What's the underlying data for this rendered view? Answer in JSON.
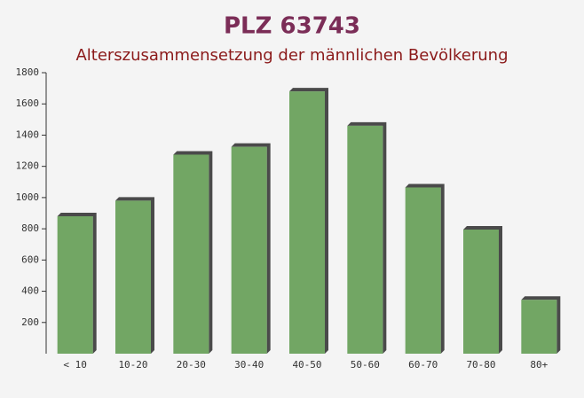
{
  "chart_data": {
    "type": "bar",
    "title": "PLZ 63743",
    "subtitle": "Alterszusammensetzung der männlichen Bevölkerung",
    "categories": [
      "< 10",
      "10-20",
      "20-30",
      "30-40",
      "40-50",
      "50-60",
      "60-70",
      "70-80",
      "80+"
    ],
    "values": [
      880,
      980,
      1275,
      1325,
      1680,
      1460,
      1065,
      795,
      345
    ],
    "color": "#6aa15c",
    "ylim": [
      0,
      1800
    ],
    "yticks": [
      200,
      400,
      600,
      800,
      1000,
      1200,
      1400,
      1600,
      1800
    ]
  }
}
